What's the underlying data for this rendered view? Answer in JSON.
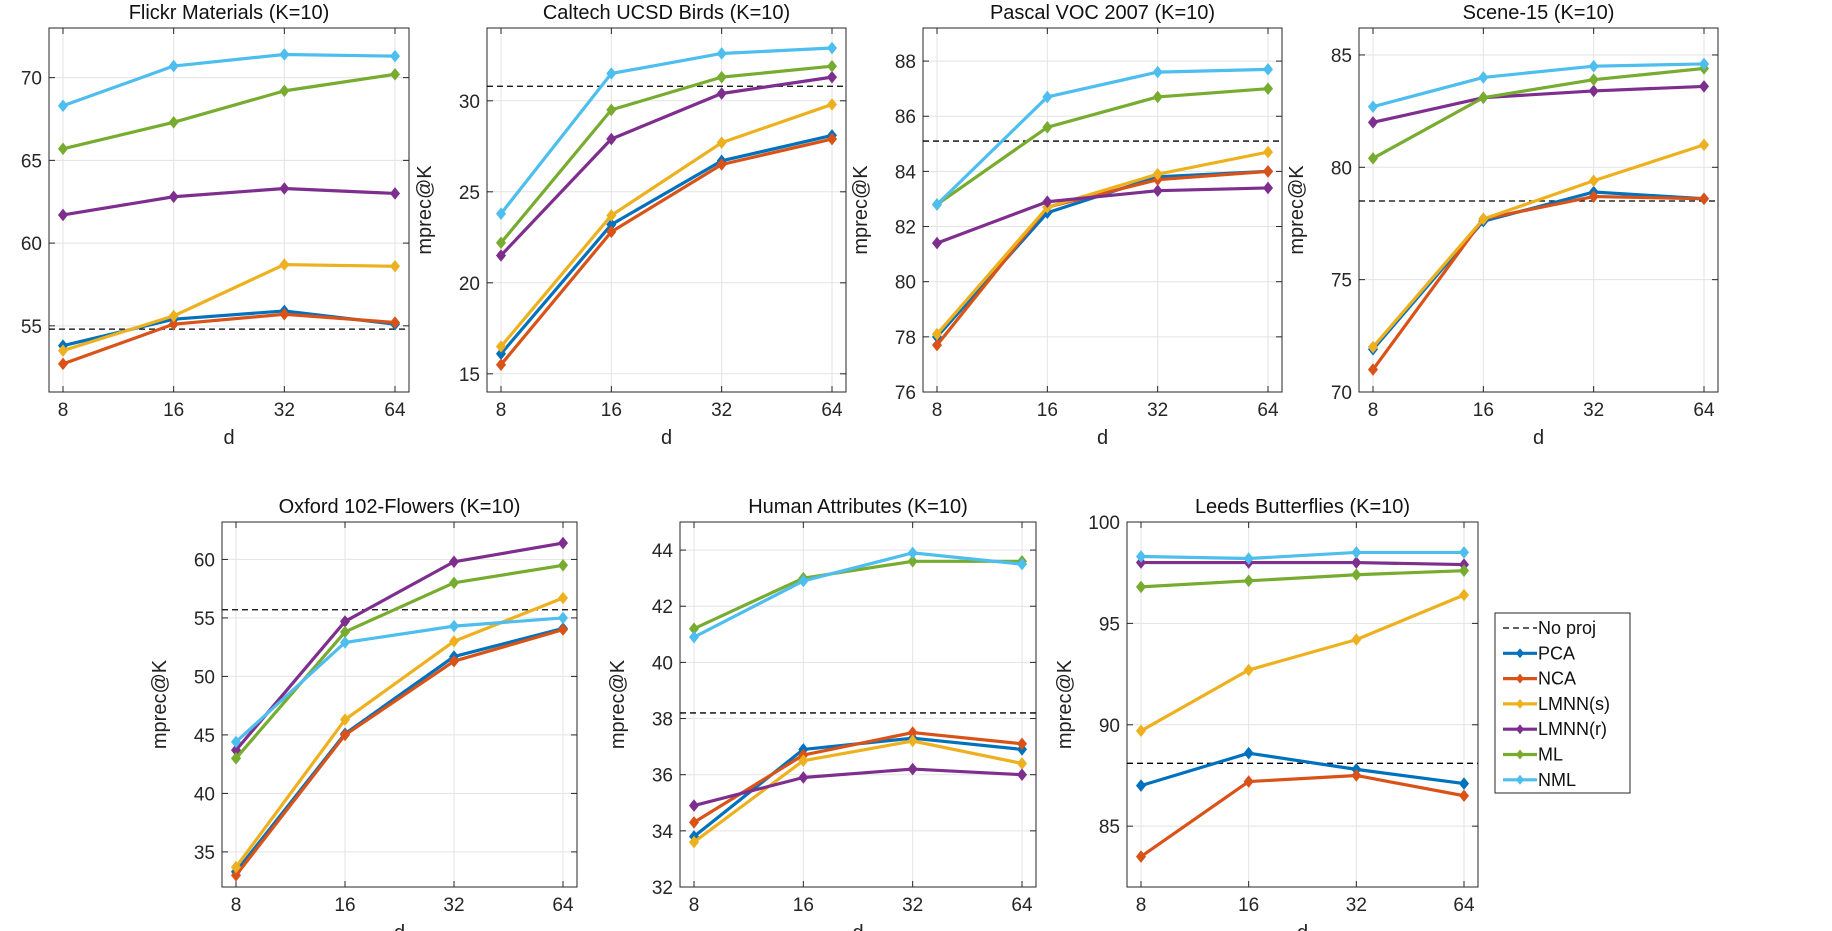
{
  "chart_data": [
    {
      "type": "line",
      "title": "Flickr Materials (K=10)",
      "xlabel": "d",
      "ylabel": "mprec@K",
      "x": [
        8,
        16,
        32,
        64
      ],
      "ylim": [
        51,
        73
      ],
      "yticks": [
        55,
        60,
        65,
        70
      ],
      "baseline": 54.8,
      "series": [
        {
          "name": "PCA",
          "values": [
            53.8,
            55.4,
            55.9,
            55.1
          ]
        },
        {
          "name": "NCA",
          "values": [
            52.7,
            55.1,
            55.7,
            55.2
          ]
        },
        {
          "name": "LMNN(s)",
          "values": [
            53.5,
            55.6,
            58.7,
            58.6
          ]
        },
        {
          "name": "LMNN(r)",
          "values": [
            61.7,
            62.8,
            63.3,
            63.0
          ]
        },
        {
          "name": "ML",
          "values": [
            65.7,
            67.3,
            69.2,
            70.2
          ]
        },
        {
          "name": "NML",
          "values": [
            68.3,
            70.7,
            71.4,
            71.3
          ]
        }
      ]
    },
    {
      "type": "line",
      "title": "Caltech UCSD Birds (K=10)",
      "xlabel": "d",
      "ylabel": "mprec@K",
      "x": [
        8,
        16,
        32,
        64
      ],
      "ylim": [
        14,
        34
      ],
      "yticks": [
        15,
        20,
        25,
        30
      ],
      "baseline": 30.8,
      "series": [
        {
          "name": "PCA",
          "values": [
            16.1,
            23.2,
            26.7,
            28.1
          ]
        },
        {
          "name": "NCA",
          "values": [
            15.5,
            22.8,
            26.5,
            27.9
          ]
        },
        {
          "name": "LMNN(s)",
          "values": [
            16.5,
            23.7,
            27.7,
            29.8
          ]
        },
        {
          "name": "LMNN(r)",
          "values": [
            21.5,
            27.9,
            30.4,
            31.3
          ]
        },
        {
          "name": "ML",
          "values": [
            22.2,
            29.5,
            31.3,
            31.9
          ]
        },
        {
          "name": "NML",
          "values": [
            23.8,
            31.5,
            32.6,
            32.9
          ]
        }
      ]
    },
    {
      "type": "line",
      "title": "Pascal VOC 2007 (K=10)",
      "xlabel": "d",
      "ylabel": "mprec@K",
      "x": [
        8,
        16,
        32,
        64
      ],
      "ylim": [
        76,
        89.2
      ],
      "yticks": [
        76,
        78,
        80,
        82,
        84,
        86,
        88
      ],
      "baseline": 85.1,
      "series": [
        {
          "name": "PCA",
          "values": [
            78.0,
            82.5,
            83.8,
            84.0
          ]
        },
        {
          "name": "NCA",
          "values": [
            77.7,
            82.7,
            83.7,
            84.0
          ]
        },
        {
          "name": "LMNN(s)",
          "values": [
            78.1,
            82.7,
            83.9,
            84.7
          ]
        },
        {
          "name": "LMNN(r)",
          "values": [
            81.4,
            82.9,
            83.3,
            83.4
          ]
        },
        {
          "name": "ML",
          "values": [
            82.8,
            85.6,
            86.7,
            87.0
          ]
        },
        {
          "name": "NML",
          "values": [
            82.8,
            86.7,
            87.6,
            87.7
          ]
        }
      ]
    },
    {
      "type": "line",
      "title": "Scene-15 (K=10)",
      "xlabel": "d",
      "ylabel": "mprec@K",
      "x": [
        8,
        16,
        32,
        64
      ],
      "ylim": [
        70,
        86.2
      ],
      "yticks": [
        70,
        75,
        80,
        85
      ],
      "baseline": 78.5,
      "series": [
        {
          "name": "PCA",
          "values": [
            71.9,
            77.6,
            78.9,
            78.6
          ]
        },
        {
          "name": "NCA",
          "values": [
            71.0,
            77.7,
            78.7,
            78.6
          ]
        },
        {
          "name": "LMNN(s)",
          "values": [
            72.0,
            77.7,
            79.4,
            81.0
          ]
        },
        {
          "name": "LMNN(r)",
          "values": [
            82.0,
            83.1,
            83.4,
            83.6
          ]
        },
        {
          "name": "ML",
          "values": [
            80.4,
            83.1,
            83.9,
            84.4
          ]
        },
        {
          "name": "NML",
          "values": [
            82.7,
            84.0,
            84.5,
            84.6
          ]
        }
      ]
    },
    {
      "type": "line",
      "title": "Oxford 102-Flowers (K=10)",
      "xlabel": "d",
      "ylabel": "mprec@K",
      "x": [
        8,
        16,
        32,
        64
      ],
      "ylim": [
        32,
        63.2
      ],
      "yticks": [
        35,
        40,
        45,
        50,
        55,
        60
      ],
      "baseline": 55.7,
      "series": [
        {
          "name": "PCA",
          "values": [
            33.3,
            45.1,
            51.7,
            54.1
          ]
        },
        {
          "name": "NCA",
          "values": [
            33.0,
            45.0,
            51.3,
            54.0
          ]
        },
        {
          "name": "LMNN(s)",
          "values": [
            33.7,
            46.3,
            53.0,
            56.7
          ]
        },
        {
          "name": "LMNN(r)",
          "values": [
            43.7,
            54.7,
            59.8,
            61.4
          ]
        },
        {
          "name": "ML",
          "values": [
            43.0,
            53.8,
            58.0,
            59.5
          ]
        },
        {
          "name": "NML",
          "values": [
            44.4,
            52.9,
            54.3,
            55.0
          ]
        }
      ]
    },
    {
      "type": "line",
      "title": "Human Attributes (K=10)",
      "xlabel": "d",
      "ylabel": "mprec@K",
      "x": [
        8,
        16,
        32,
        64
      ],
      "ylim": [
        32,
        45
      ],
      "yticks": [
        32,
        34,
        36,
        38,
        40,
        42,
        44
      ],
      "baseline": 38.2,
      "series": [
        {
          "name": "PCA",
          "values": [
            33.8,
            36.9,
            37.3,
            36.9
          ]
        },
        {
          "name": "NCA",
          "values": [
            34.3,
            36.7,
            37.5,
            37.1
          ]
        },
        {
          "name": "LMNN(s)",
          "values": [
            33.6,
            36.5,
            37.2,
            36.4
          ]
        },
        {
          "name": "LMNN(r)",
          "values": [
            34.9,
            35.9,
            36.2,
            36.0
          ]
        },
        {
          "name": "ML",
          "values": [
            41.2,
            43.0,
            43.6,
            43.6
          ]
        },
        {
          "name": "NML",
          "values": [
            40.9,
            42.9,
            43.9,
            43.5
          ]
        }
      ]
    },
    {
      "type": "line",
      "title": "Leeds Butterflies (K=10)",
      "xlabel": "d",
      "ylabel": "mprec@K",
      "x": [
        8,
        16,
        32,
        64
      ],
      "ylim": [
        82,
        100
      ],
      "yticks": [
        85,
        90,
        95,
        100
      ],
      "baseline": 88.1,
      "series": [
        {
          "name": "PCA",
          "values": [
            87.0,
            88.6,
            87.8,
            87.1
          ]
        },
        {
          "name": "NCA",
          "values": [
            83.5,
            87.2,
            87.5,
            86.5
          ]
        },
        {
          "name": "LMNN(s)",
          "values": [
            89.7,
            92.7,
            94.2,
            96.4
          ]
        },
        {
          "name": "LMNN(r)",
          "values": [
            98.0,
            98.0,
            98.0,
            97.9
          ]
        },
        {
          "name": "ML",
          "values": [
            96.8,
            97.1,
            97.4,
            97.6
          ]
        },
        {
          "name": "NML",
          "values": [
            98.3,
            98.2,
            98.5,
            98.5
          ]
        }
      ]
    }
  ],
  "legend": {
    "entries": [
      "No proj",
      "PCA",
      "NCA",
      "LMNN(s)",
      "LMNN(r)",
      "ML",
      "NML"
    ],
    "colors": {
      "PCA": "#0072BD",
      "NCA": "#D95319",
      "LMNN(s)": "#EDB120",
      "LMNN(r)": "#7E2F8E",
      "ML": "#77AC30",
      "NML": "#4DBEEE"
    },
    "baseline_color": "#000000"
  }
}
